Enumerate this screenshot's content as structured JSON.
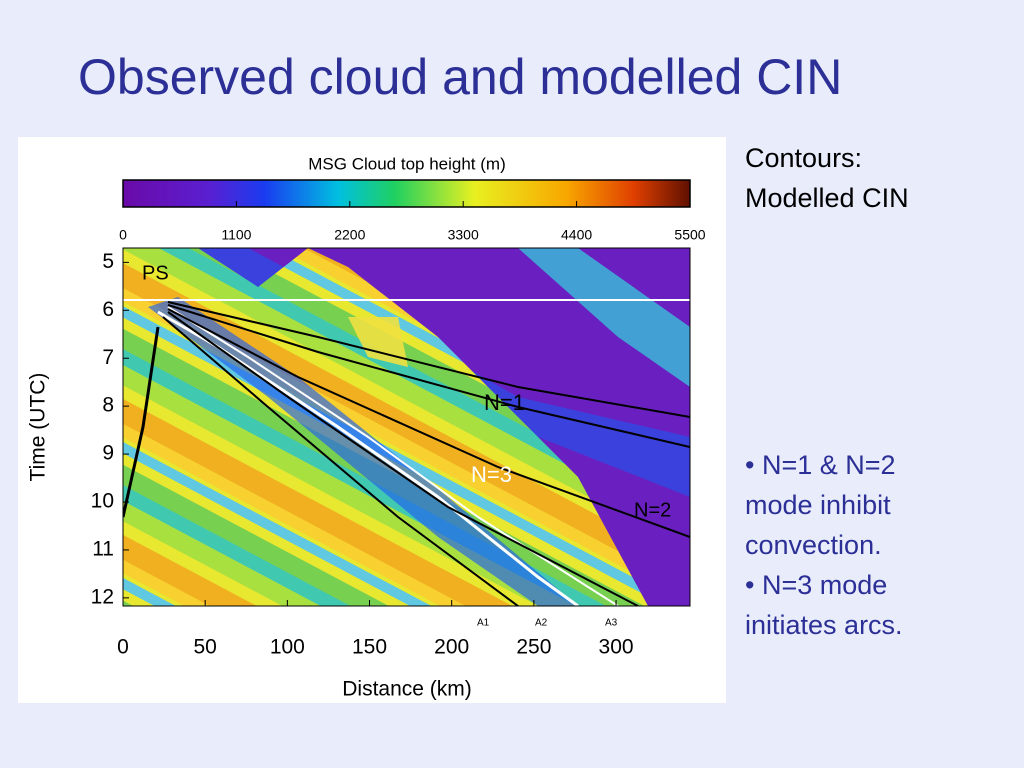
{
  "title": "Observed cloud and modelled CIN",
  "figure": {
    "colorbar_title": "MSG Cloud top height (m)",
    "colorbar_lim": [
      0,
      5500
    ],
    "colorbar_ticks": [
      0,
      1100,
      2200,
      3300,
      4400,
      5500
    ],
    "x_label": "Distance (km)",
    "xlim": [
      0,
      345
    ],
    "xticks": [
      0,
      50,
      100,
      150,
      200,
      250,
      300
    ],
    "y_label": "Time (UTC)",
    "ylim": [
      4.7,
      12.17
    ],
    "yticks": [
      5,
      6,
      7,
      8,
      9,
      10,
      11,
      12
    ],
    "annotations": [
      "PS",
      "N=1",
      "N=3",
      "N=2",
      "A1",
      "A2",
      "A3"
    ]
  },
  "notes": {
    "heading": "Contours: Modelled CIN",
    "bullets": [
      "N=1 & N=2 mode inhibit convection.",
      "N=3 mode initiates arcs."
    ]
  }
}
